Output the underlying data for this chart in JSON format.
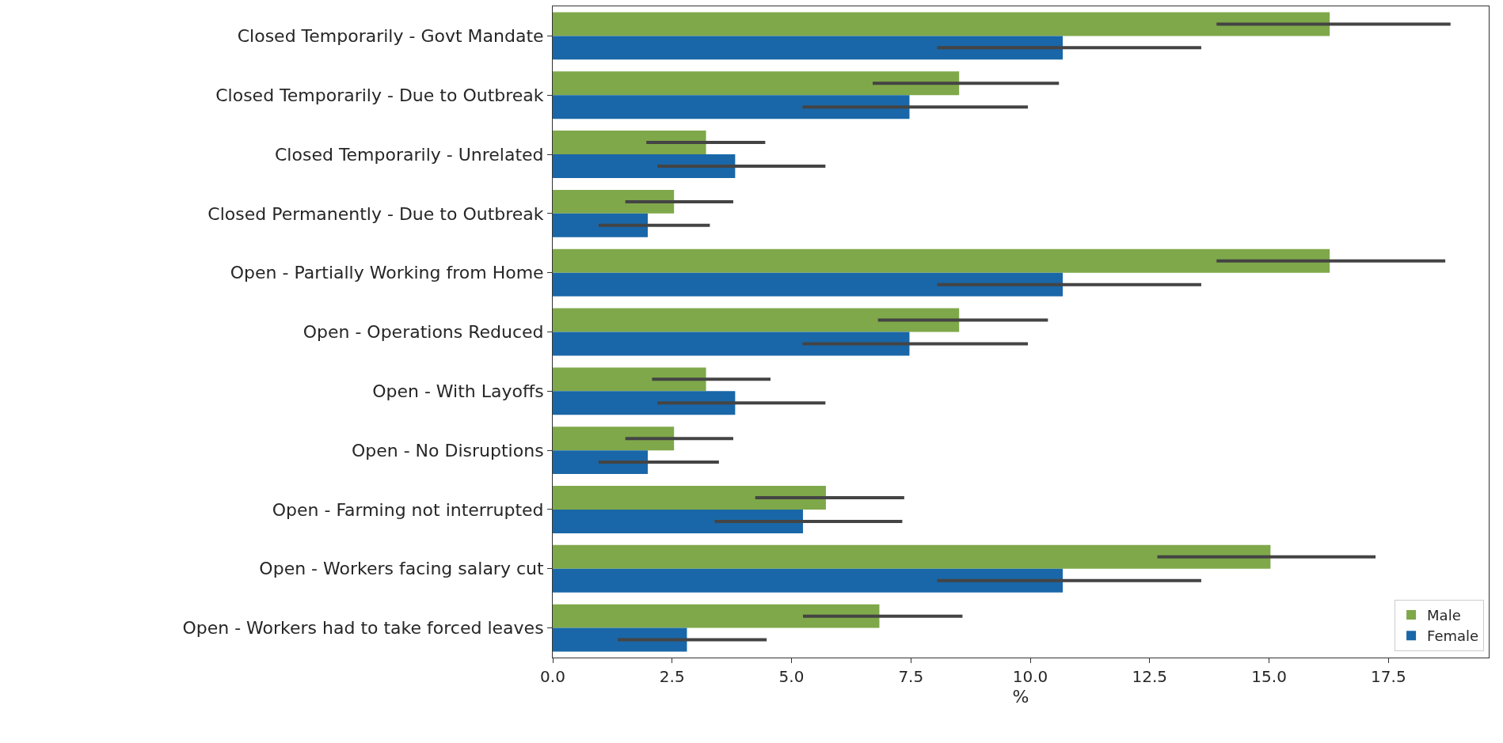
{
  "chart_data": {
    "type": "bar",
    "orientation": "horizontal",
    "xlabel": "%",
    "categories": [
      "Closed Temporarily - Govt Mandate",
      "Closed Temporarily - Due to Outbreak",
      "Closed Temporarily - Unrelated",
      "Closed Permanently - Due to Outbreak",
      "Open - Partially Working from Home",
      "Open - Operations Reduced",
      "Open - With Layoffs",
      "Open - No Disruptions",
      "Open - Farming not interrupted",
      "Open - Workers facing salary cut",
      "Open - Workers had to take forced leaves"
    ],
    "series": [
      {
        "name": "Male",
        "color": "#7fa84a",
        "values": [
          16.27,
          8.51,
          3.21,
          2.54,
          16.27,
          8.51,
          3.21,
          2.54,
          5.72,
          15.03,
          6.84
        ],
        "errors": [
          [
            13.9,
            18.8
          ],
          [
            6.7,
            10.6
          ],
          [
            1.96,
            4.45
          ],
          [
            1.52,
            3.78
          ],
          [
            13.9,
            18.69
          ],
          [
            6.81,
            10.37
          ],
          [
            2.08,
            4.56
          ],
          [
            1.52,
            3.78
          ],
          [
            4.24,
            7.36
          ],
          [
            12.66,
            17.23
          ],
          [
            5.24,
            8.58
          ]
        ]
      },
      {
        "name": "Female",
        "color": "#1967a8",
        "values": [
          10.68,
          7.47,
          3.82,
          1.99,
          10.68,
          7.47,
          3.82,
          1.99,
          5.24,
          10.68,
          2.81
        ],
        "errors": [
          [
            8.05,
            13.58
          ],
          [
            5.23,
            9.95
          ],
          [
            2.19,
            5.71
          ],
          [
            0.96,
            3.29
          ],
          [
            8.05,
            13.58
          ],
          [
            5.23,
            9.95
          ],
          [
            2.19,
            5.71
          ],
          [
            0.96,
            3.48
          ],
          [
            3.39,
            7.32
          ],
          [
            8.05,
            13.58
          ],
          [
            1.36,
            4.48
          ]
        ]
      }
    ],
    "xlim": [
      0,
      19.6
    ],
    "xticks": [
      {
        "value": 0,
        "label": "0.0"
      },
      {
        "value": 2.5,
        "label": "2.5"
      },
      {
        "value": 5,
        "label": "5.0"
      },
      {
        "value": 7.5,
        "label": "7.5"
      },
      {
        "value": 10,
        "label": "10.0"
      },
      {
        "value": 12.5,
        "label": "12.5"
      },
      {
        "value": 15,
        "label": "15.0"
      },
      {
        "value": 17.5,
        "label": "17.5"
      }
    ],
    "grid": false,
    "legend": "bottom right"
  }
}
